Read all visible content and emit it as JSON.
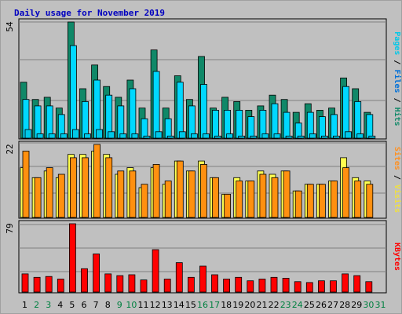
{
  "chart_data": {
    "type": "bar",
    "title": "Daily usage for November 2019",
    "categories": [
      "1",
      "2",
      "3",
      "4",
      "5",
      "6",
      "7",
      "8",
      "9",
      "10",
      "11",
      "12",
      "13",
      "14",
      "15",
      "16",
      "17",
      "18",
      "19",
      "20",
      "21",
      "22",
      "23",
      "24",
      "25",
      "26",
      "27",
      "28",
      "29",
      "30",
      "31"
    ],
    "weekend_categories": [
      "2",
      "3",
      "9",
      "10",
      "16",
      "17",
      "23",
      "24",
      "30",
      "31"
    ],
    "panels": [
      {
        "id": "hits-files-pages",
        "label_parts": [
          {
            "text": "Pages",
            "color": "#00c8e8"
          },
          {
            "text": " / ",
            "color": "#000000"
          },
          {
            "text": "Files",
            "color": "#0070d8"
          },
          {
            "text": " / ",
            "color": "#000000"
          },
          {
            "text": "Hits",
            "color": "#108868"
          }
        ],
        "max_label": "54",
        "ylim": [
          0,
          54
        ],
        "series": [
          {
            "name": "Hits",
            "color": "#108868",
            "values": [
              26,
              18,
              19,
              14,
              54,
              23,
              34,
              24,
              19,
              27,
              14,
              41,
              14,
              29,
              18,
              38,
              14,
              19,
              17,
              13,
              15,
              20,
              18,
              12,
              16,
              13,
              14,
              28,
              23,
              12,
              0
            ]
          },
          {
            "name": "Files",
            "color": "#00d8ff",
            "values": [
              18,
              15,
              15,
              11,
              43,
              17,
              27,
              20,
              15,
              23,
              9,
              31,
              9,
              26,
              15,
              25,
              13,
              13,
              13,
              10,
              13,
              16,
              12,
              7,
              12,
              10,
              11,
              24,
              17,
              11,
              0
            ]
          },
          {
            "name": "Pages",
            "color": "#00c8e8",
            "values": [
              4,
              2,
              2,
              2,
              4,
              2,
              4,
              3,
              2,
              2,
              1,
              3,
              1,
              3,
              2,
              2,
              1,
              2,
              1,
              1,
              2,
              2,
              1,
              1,
              2,
              1,
              1,
              3,
              2,
              1,
              0
            ]
          }
        ]
      },
      {
        "id": "visits-sites",
        "label_parts": [
          {
            "text": "Sites",
            "color": "#ff9020"
          },
          {
            "text": " / ",
            "color": "#000000"
          },
          {
            "text": "Visits",
            "color": "#f0e040"
          }
        ],
        "max_label": "22",
        "ylim": [
          0,
          22
        ],
        "series": [
          {
            "name": "Visits",
            "color": "#ffff50",
            "values": [
              15,
              12,
              14,
              12,
              19,
              19,
              20,
              19,
              13,
              15,
              9,
              15,
              10,
              17,
              14,
              17,
              12,
              7,
              12,
              11,
              14,
              13,
              14,
              8,
              10,
              10,
              11,
              18,
              12,
              11,
              0
            ]
          },
          {
            "name": "Sites",
            "color": "#ff9010",
            "values": [
              20,
              12,
              15,
              13,
              18,
              18,
              22,
              18,
              14,
              14,
              10,
              16,
              11,
              17,
              14,
              16,
              12,
              7,
              11,
              11,
              13,
              12,
              14,
              8,
              10,
              10,
              11,
              15,
              11,
              10,
              0
            ]
          }
        ]
      },
      {
        "id": "kbytes",
        "label_parts": [
          {
            "text": "KBytes",
            "color": "#ff0000"
          }
        ],
        "max_label": "79",
        "ylim": [
          0,
          79
        ],
        "series": [
          {
            "name": "KBytes",
            "color": "#ff0000",
            "values": [
              21,
              17,
              18,
              15,
              79,
              27,
              44,
              21,
              19,
              20,
              14,
              49,
              15,
              34,
              17,
              30,
              20,
              15,
              17,
              13,
              15,
              17,
              16,
              12,
              11,
              13,
              13,
              21,
              19,
              12,
              0
            ]
          }
        ]
      }
    ],
    "colors": {
      "background": "#c0c0c0",
      "grid": "#808080",
      "title": "#0000c0",
      "weekday_label": "#000000",
      "weekend_label": "#008040"
    }
  }
}
